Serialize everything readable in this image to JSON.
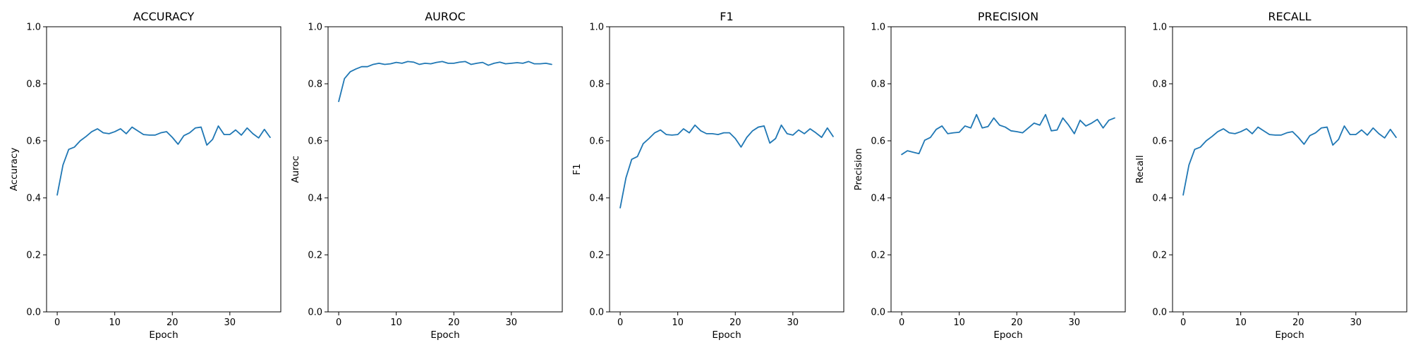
{
  "colors": {
    "series": "#1f77b4"
  },
  "chart_data": [
    {
      "type": "line",
      "title": "ACCURACY",
      "xlabel": "Epoch",
      "ylabel": "Accuracy",
      "xlim": [
        -1.85,
        38.85
      ],
      "ylim": [
        0.0,
        1.0
      ],
      "xticks": [
        0,
        10,
        20,
        30
      ],
      "xtick_labels": [
        "0",
        "10",
        "20",
        "30"
      ],
      "yticks": [
        0.0,
        0.2,
        0.4,
        0.6,
        0.8,
        1.0
      ],
      "ytick_labels": [
        "0.0",
        "0.2",
        "0.4",
        "0.6",
        "0.8",
        "1.0"
      ],
      "grid": false,
      "legend": "none",
      "x": [
        0,
        1,
        2,
        3,
        4,
        5,
        6,
        7,
        8,
        9,
        10,
        11,
        12,
        13,
        14,
        15,
        16,
        17,
        18,
        19,
        20,
        21,
        22,
        23,
        24,
        25,
        26,
        27,
        28,
        29,
        30,
        31,
        32,
        33,
        34,
        35,
        36,
        37
      ],
      "series": [
        {
          "values": [
            0.41,
            0.515,
            0.57,
            0.578,
            0.6,
            0.615,
            0.632,
            0.642,
            0.628,
            0.625,
            0.632,
            0.642,
            0.625,
            0.648,
            0.635,
            0.622,
            0.62,
            0.62,
            0.628,
            0.632,
            0.612,
            0.588,
            0.618,
            0.628,
            0.645,
            0.648,
            0.585,
            0.605,
            0.652,
            0.622,
            0.622,
            0.638,
            0.62,
            0.645,
            0.625,
            0.61,
            0.64,
            0.612
          ]
        }
      ]
    },
    {
      "type": "line",
      "title": "AUROC",
      "xlabel": "Epoch",
      "ylabel": "Auroc",
      "xlim": [
        -1.85,
        38.85
      ],
      "ylim": [
        0.0,
        1.0
      ],
      "xticks": [
        0,
        10,
        20,
        30
      ],
      "xtick_labels": [
        "0",
        "10",
        "20",
        "30"
      ],
      "yticks": [
        0.0,
        0.2,
        0.4,
        0.6,
        0.8,
        1.0
      ],
      "ytick_labels": [
        "0.0",
        "0.2",
        "0.4",
        "0.6",
        "0.8",
        "1.0"
      ],
      "grid": false,
      "legend": "none",
      "x": [
        0,
        1,
        2,
        3,
        4,
        5,
        6,
        7,
        8,
        9,
        10,
        11,
        12,
        13,
        14,
        15,
        16,
        17,
        18,
        19,
        20,
        21,
        22,
        23,
        24,
        25,
        26,
        27,
        28,
        29,
        30,
        31,
        32,
        33,
        34,
        35,
        36,
        37
      ],
      "series": [
        {
          "values": [
            0.738,
            0.818,
            0.842,
            0.852,
            0.86,
            0.86,
            0.868,
            0.872,
            0.868,
            0.87,
            0.875,
            0.872,
            0.878,
            0.876,
            0.868,
            0.872,
            0.87,
            0.875,
            0.878,
            0.872,
            0.872,
            0.876,
            0.878,
            0.868,
            0.872,
            0.875,
            0.865,
            0.872,
            0.876,
            0.87,
            0.872,
            0.874,
            0.872,
            0.878,
            0.87,
            0.87,
            0.872,
            0.868
          ]
        }
      ]
    },
    {
      "type": "line",
      "title": "F1",
      "xlabel": "Epoch",
      "ylabel": "F1",
      "xlim": [
        -1.85,
        38.85
      ],
      "ylim": [
        0.0,
        1.0
      ],
      "xticks": [
        0,
        10,
        20,
        30
      ],
      "xtick_labels": [
        "0",
        "10",
        "20",
        "30"
      ],
      "yticks": [
        0.0,
        0.2,
        0.4,
        0.6,
        0.8,
        1.0
      ],
      "ytick_labels": [
        "0.0",
        "0.2",
        "0.4",
        "0.6",
        "0.8",
        "1.0"
      ],
      "grid": false,
      "legend": "none",
      "x": [
        0,
        1,
        2,
        3,
        4,
        5,
        6,
        7,
        8,
        9,
        10,
        11,
        12,
        13,
        14,
        15,
        16,
        17,
        18,
        19,
        20,
        21,
        22,
        23,
        24,
        25,
        26,
        27,
        28,
        29,
        30,
        31,
        32,
        33,
        34,
        35,
        36,
        37
      ],
      "series": [
        {
          "values": [
            0.365,
            0.47,
            0.535,
            0.545,
            0.59,
            0.608,
            0.628,
            0.638,
            0.622,
            0.62,
            0.622,
            0.642,
            0.628,
            0.655,
            0.635,
            0.625,
            0.625,
            0.622,
            0.628,
            0.628,
            0.608,
            0.578,
            0.612,
            0.635,
            0.648,
            0.652,
            0.592,
            0.608,
            0.655,
            0.625,
            0.62,
            0.638,
            0.625,
            0.642,
            0.628,
            0.612,
            0.645,
            0.615
          ]
        }
      ]
    },
    {
      "type": "line",
      "title": "PRECISION",
      "xlabel": "Epoch",
      "ylabel": "Precision",
      "xlim": [
        -1.85,
        38.85
      ],
      "ylim": [
        0.0,
        1.0
      ],
      "xticks": [
        0,
        10,
        20,
        30
      ],
      "xtick_labels": [
        "0",
        "10",
        "20",
        "30"
      ],
      "yticks": [
        0.0,
        0.2,
        0.4,
        0.6,
        0.8,
        1.0
      ],
      "ytick_labels": [
        "0.0",
        "0.2",
        "0.4",
        "0.6",
        "0.8",
        "1.0"
      ],
      "grid": false,
      "legend": "none",
      "x": [
        0,
        1,
        2,
        3,
        4,
        5,
        6,
        7,
        8,
        9,
        10,
        11,
        12,
        13,
        14,
        15,
        16,
        17,
        18,
        19,
        20,
        21,
        22,
        23,
        24,
        25,
        26,
        27,
        28,
        29,
        30,
        31,
        32,
        33,
        34,
        35,
        36,
        37
      ],
      "series": [
        {
          "values": [
            0.552,
            0.565,
            0.56,
            0.555,
            0.602,
            0.612,
            0.64,
            0.652,
            0.625,
            0.628,
            0.63,
            0.652,
            0.645,
            0.692,
            0.645,
            0.65,
            0.68,
            0.655,
            0.648,
            0.635,
            0.632,
            0.628,
            0.645,
            0.662,
            0.655,
            0.692,
            0.635,
            0.638,
            0.68,
            0.655,
            0.625,
            0.672,
            0.652,
            0.662,
            0.675,
            0.645,
            0.672,
            0.68
          ]
        }
      ]
    },
    {
      "type": "line",
      "title": "RECALL",
      "xlabel": "Epoch",
      "ylabel": "Recall",
      "xlim": [
        -1.85,
        38.85
      ],
      "ylim": [
        0.0,
        1.0
      ],
      "xticks": [
        0,
        10,
        20,
        30
      ],
      "xtick_labels": [
        "0",
        "10",
        "20",
        "30"
      ],
      "yticks": [
        0.0,
        0.2,
        0.4,
        0.6,
        0.8,
        1.0
      ],
      "ytick_labels": [
        "0.0",
        "0.2",
        "0.4",
        "0.6",
        "0.8",
        "1.0"
      ],
      "grid": false,
      "legend": "none",
      "x": [
        0,
        1,
        2,
        3,
        4,
        5,
        6,
        7,
        8,
        9,
        10,
        11,
        12,
        13,
        14,
        15,
        16,
        17,
        18,
        19,
        20,
        21,
        22,
        23,
        24,
        25,
        26,
        27,
        28,
        29,
        30,
        31,
        32,
        33,
        34,
        35,
        36,
        37
      ],
      "series": [
        {
          "values": [
            0.41,
            0.515,
            0.57,
            0.578,
            0.6,
            0.615,
            0.632,
            0.642,
            0.628,
            0.625,
            0.632,
            0.642,
            0.625,
            0.648,
            0.635,
            0.622,
            0.62,
            0.62,
            0.628,
            0.632,
            0.612,
            0.588,
            0.618,
            0.628,
            0.645,
            0.648,
            0.585,
            0.605,
            0.652,
            0.622,
            0.622,
            0.638,
            0.62,
            0.645,
            0.625,
            0.61,
            0.64,
            0.612
          ]
        }
      ]
    }
  ]
}
